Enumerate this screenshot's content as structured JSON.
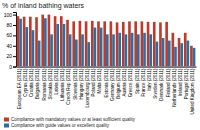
{
  "chart_data": {
    "type": "bar",
    "title": "% of inland bathing waters",
    "categories": [
      "European EA (2011)",
      "Cyprus (2011)",
      "Croatia (2011)",
      "Bulgaria (2011)",
      "Romania (2011)",
      "Slovakia (2011)",
      "Latvia (2011)",
      "Lithuania (2011)",
      "Czech Rep (2011)",
      "Slovenia (2011)",
      "Hungary (2011)",
      "Luxembourg (2011)",
      "Poland (2011)",
      "Malta (2011)",
      "Estonia (2011)",
      "Germany (2011)",
      "Belgium (2011)",
      "Austria (2011)",
      "Greece (2011)",
      "Spain (2011)",
      "France (2011)",
      "Italy (2011)",
      "Sweden (2011)",
      "Denmark (2011)",
      "Finland (2011)",
      "Netherlands (2011)",
      "Ireland (2011)",
      "Portugal (2011)",
      "United Kingdom (2011)"
    ],
    "series": [
      {
        "name": "Compliance with mandatory values or at least sufficient quality",
        "color": "#c0392b",
        "values": [
          97,
          96,
          96,
          95,
          100,
          100,
          97,
          97,
          90,
          87,
          88,
          87,
          88,
          87,
          87,
          87,
          85,
          86,
          87,
          87,
          87,
          86,
          86,
          85,
          86,
          65,
          55,
          65,
          40
        ]
      },
      {
        "name": "Compliance with guide values or excellent quality",
        "color": "#2471a3",
        "values": [
          92,
          76,
          70,
          50,
          93,
          62,
          82,
          82,
          62,
          52,
          62,
          47,
          75,
          75,
          62,
          62,
          65,
          62,
          65,
          62,
          65,
          62,
          48,
          55,
          50,
          38,
          45,
          50,
          36
        ]
      }
    ],
    "ylim": [
      0,
      105
    ],
    "yticks": [
      0,
      20,
      40,
      60,
      80,
      100
    ],
    "grid": false,
    "legend": "bottom"
  }
}
